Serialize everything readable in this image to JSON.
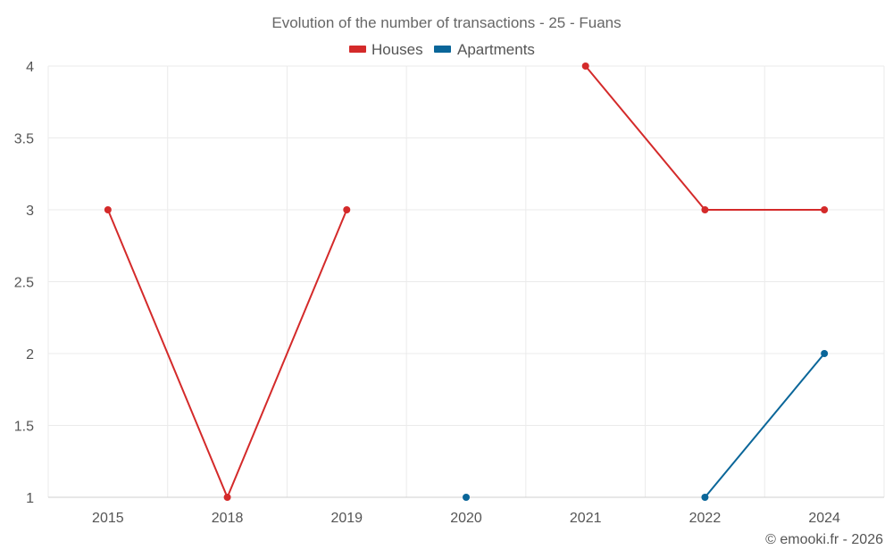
{
  "chart_data": {
    "type": "line",
    "title": "Evolution of the number of transactions - 25 - Fuans",
    "categories": [
      "2015",
      "2018",
      "2019",
      "2020",
      "2021",
      "2022",
      "2024"
    ],
    "ylim": [
      1,
      4
    ],
    "yticks": [
      1,
      1.5,
      2,
      2.5,
      3,
      3.5,
      4
    ],
    "ytick_labels": [
      "1",
      "1.5",
      "2",
      "2.5",
      "3",
      "3.5",
      "4"
    ],
    "grid": true,
    "legend_position": "top-center",
    "series": [
      {
        "name": "Houses",
        "color": "#d42a2a",
        "values": [
          3,
          1,
          3,
          null,
          4,
          3,
          3
        ]
      },
      {
        "name": "Apartments",
        "color": "#0a6699",
        "values": [
          null,
          null,
          null,
          1,
          null,
          1,
          2
        ]
      }
    ],
    "credit": "© emooki.fr - 2026"
  }
}
